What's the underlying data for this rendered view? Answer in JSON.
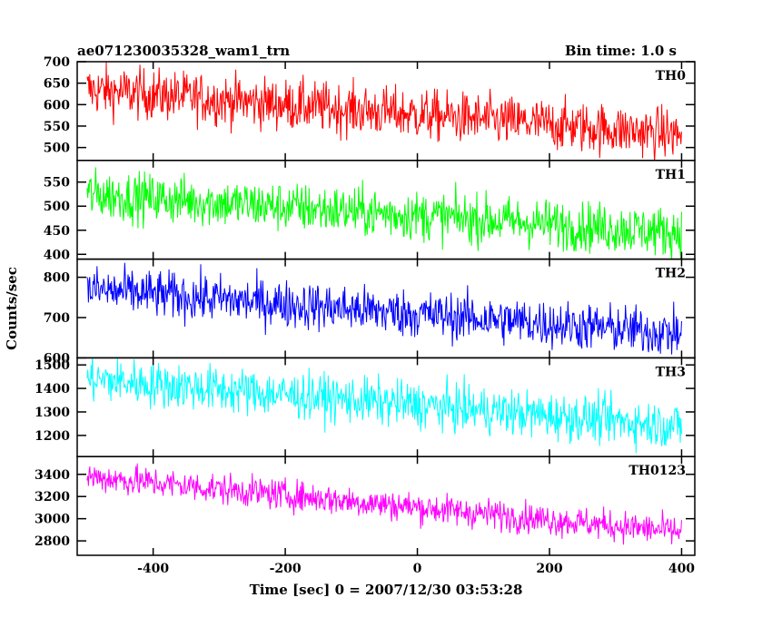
{
  "chart_data": {
    "type": "line",
    "title": "ae071230035328_wam1_trn",
    "subtitle": "Bin time: 1.0 s",
    "xlabel": "Time [sec] 0 = 2007/12/30 03:53:28",
    "ylabel": "Counts/sec",
    "xlim": [
      -515,
      420
    ],
    "x_ticks": [
      -400,
      -200,
      0,
      200,
      400
    ],
    "x_range_data": [
      -500,
      400
    ],
    "bin_seconds": 1.0,
    "panels": [
      {
        "name": "TH0",
        "color": "#ff0000",
        "ylim": [
          470,
          700
        ],
        "y_ticks": [
          500,
          550,
          600,
          650,
          700
        ],
        "start": 635,
        "end": 530,
        "noise": 30
      },
      {
        "name": "TH1",
        "color": "#00ff00",
        "ylim": [
          390,
          595
        ],
        "y_ticks": [
          400,
          450,
          500,
          550
        ],
        "start": 525,
        "end": 445,
        "noise": 26
      },
      {
        "name": "TH2",
        "color": "#0000ff",
        "ylim": [
          600,
          845
        ],
        "y_ticks": [
          600,
          700,
          800
        ],
        "start": 770,
        "end": 660,
        "noise": 30
      },
      {
        "name": "TH3",
        "color": "#00ffff",
        "ylim": [
          1110,
          1530
        ],
        "y_ticks": [
          1200,
          1300,
          1400,
          1500
        ],
        "start": 1440,
        "end": 1240,
        "noise": 50
      },
      {
        "name": "TH0123",
        "color": "#ff00ff",
        "ylim": [
          2670,
          3560
        ],
        "y_ticks": [
          2800,
          3000,
          3200,
          3400
        ],
        "start": 3380,
        "end": 2880,
        "noise": 70
      }
    ]
  }
}
